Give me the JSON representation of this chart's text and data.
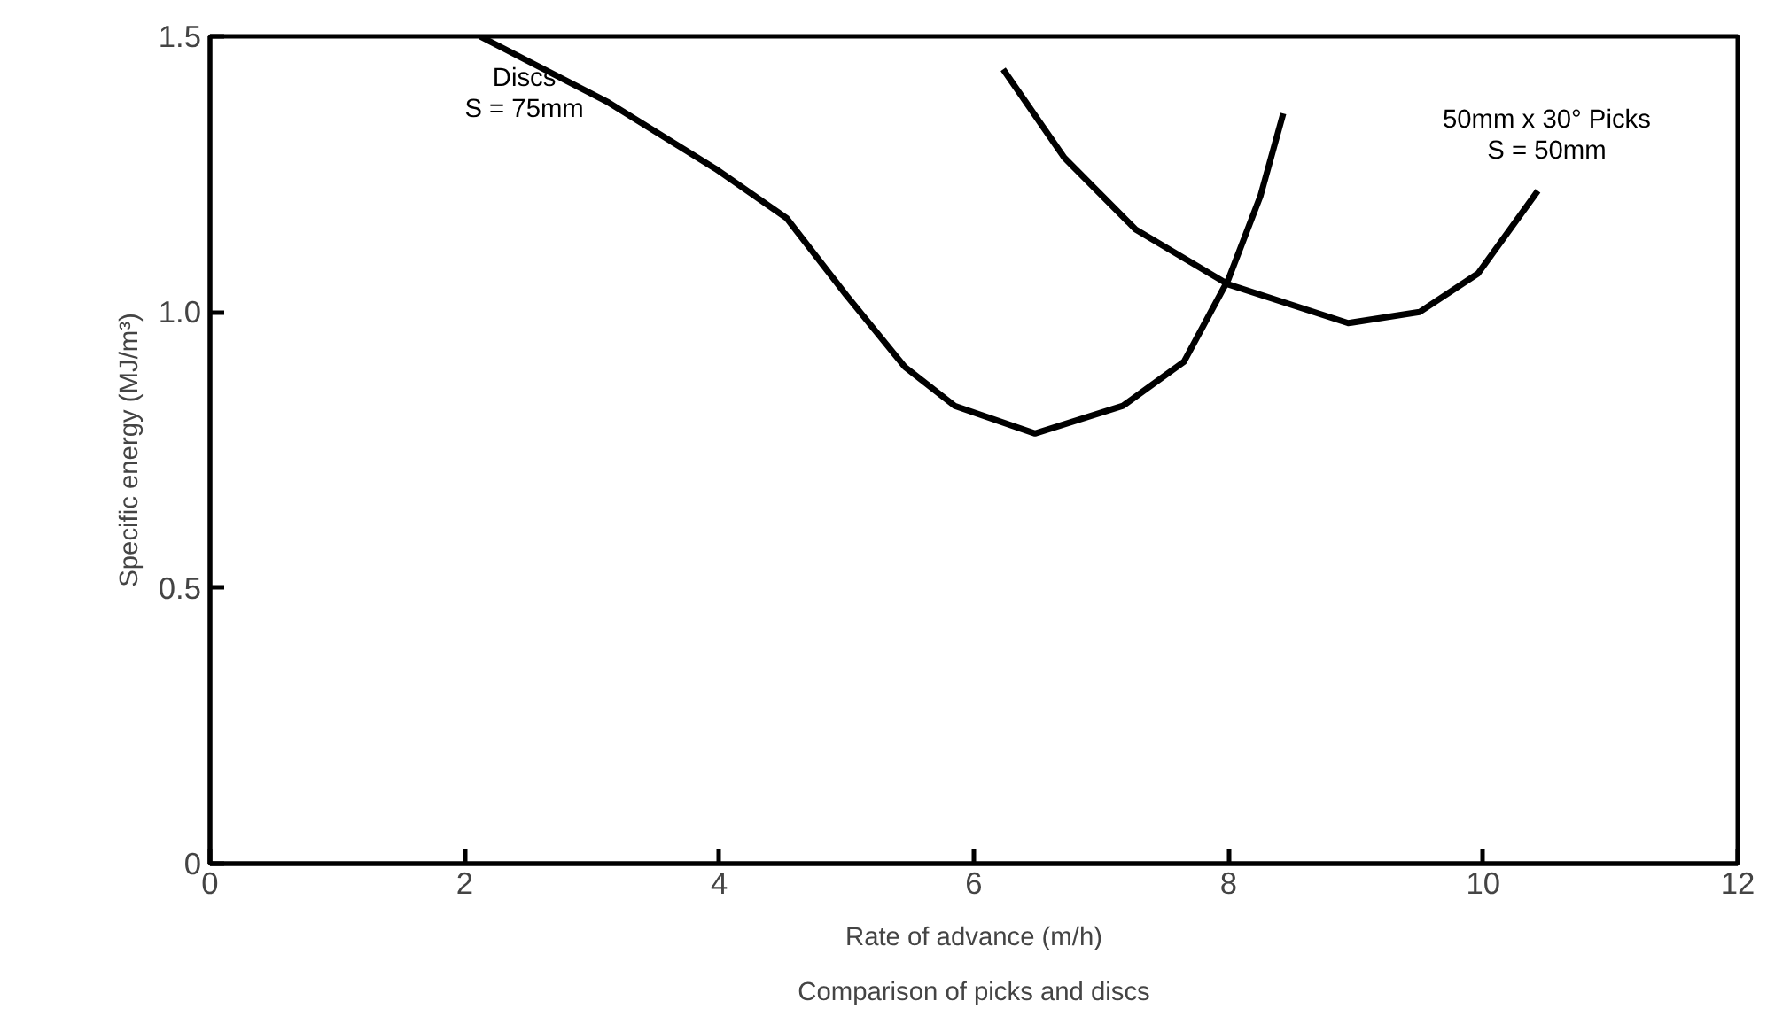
{
  "chart_data": {
    "type": "line",
    "title": "Comparison of picks and discs",
    "xlabel": "Rate of advance (m/h)",
    "ylabel": "Specific energy (MJ/m³)",
    "xlim": [
      0,
      12
    ],
    "ylim": [
      0,
      1.5
    ],
    "xticks": [
      0,
      2,
      4,
      6,
      8,
      10,
      12
    ],
    "yticks": [
      0,
      0.5,
      {
        "value": 1,
        "label": "1.0"
      },
      1.5
    ],
    "grid": false,
    "line_style": "solid",
    "series": [
      {
        "name": "Discs\nS = 75mm",
        "color": "#000000",
        "x": [
          2.12,
          3.13,
          3.97,
          4.53,
          5.0,
          5.46,
          5.85,
          6.48,
          7.17,
          7.65,
          8.0,
          8.25,
          8.43
        ],
        "values": [
          1.5,
          1.38,
          1.26,
          1.17,
          1.03,
          0.9,
          0.83,
          0.78,
          0.83,
          0.91,
          1.06,
          1.21,
          1.36
        ]
      },
      {
        "name": "50mm x 30° Picks\nS = 50mm",
        "color": "#000000",
        "x": [
          6.23,
          6.71,
          7.27,
          8.0,
          8.94,
          9.5,
          9.96,
          10.43
        ],
        "values": [
          1.44,
          1.28,
          1.15,
          1.05,
          0.98,
          1.0,
          1.07,
          1.22
        ]
      }
    ]
  }
}
